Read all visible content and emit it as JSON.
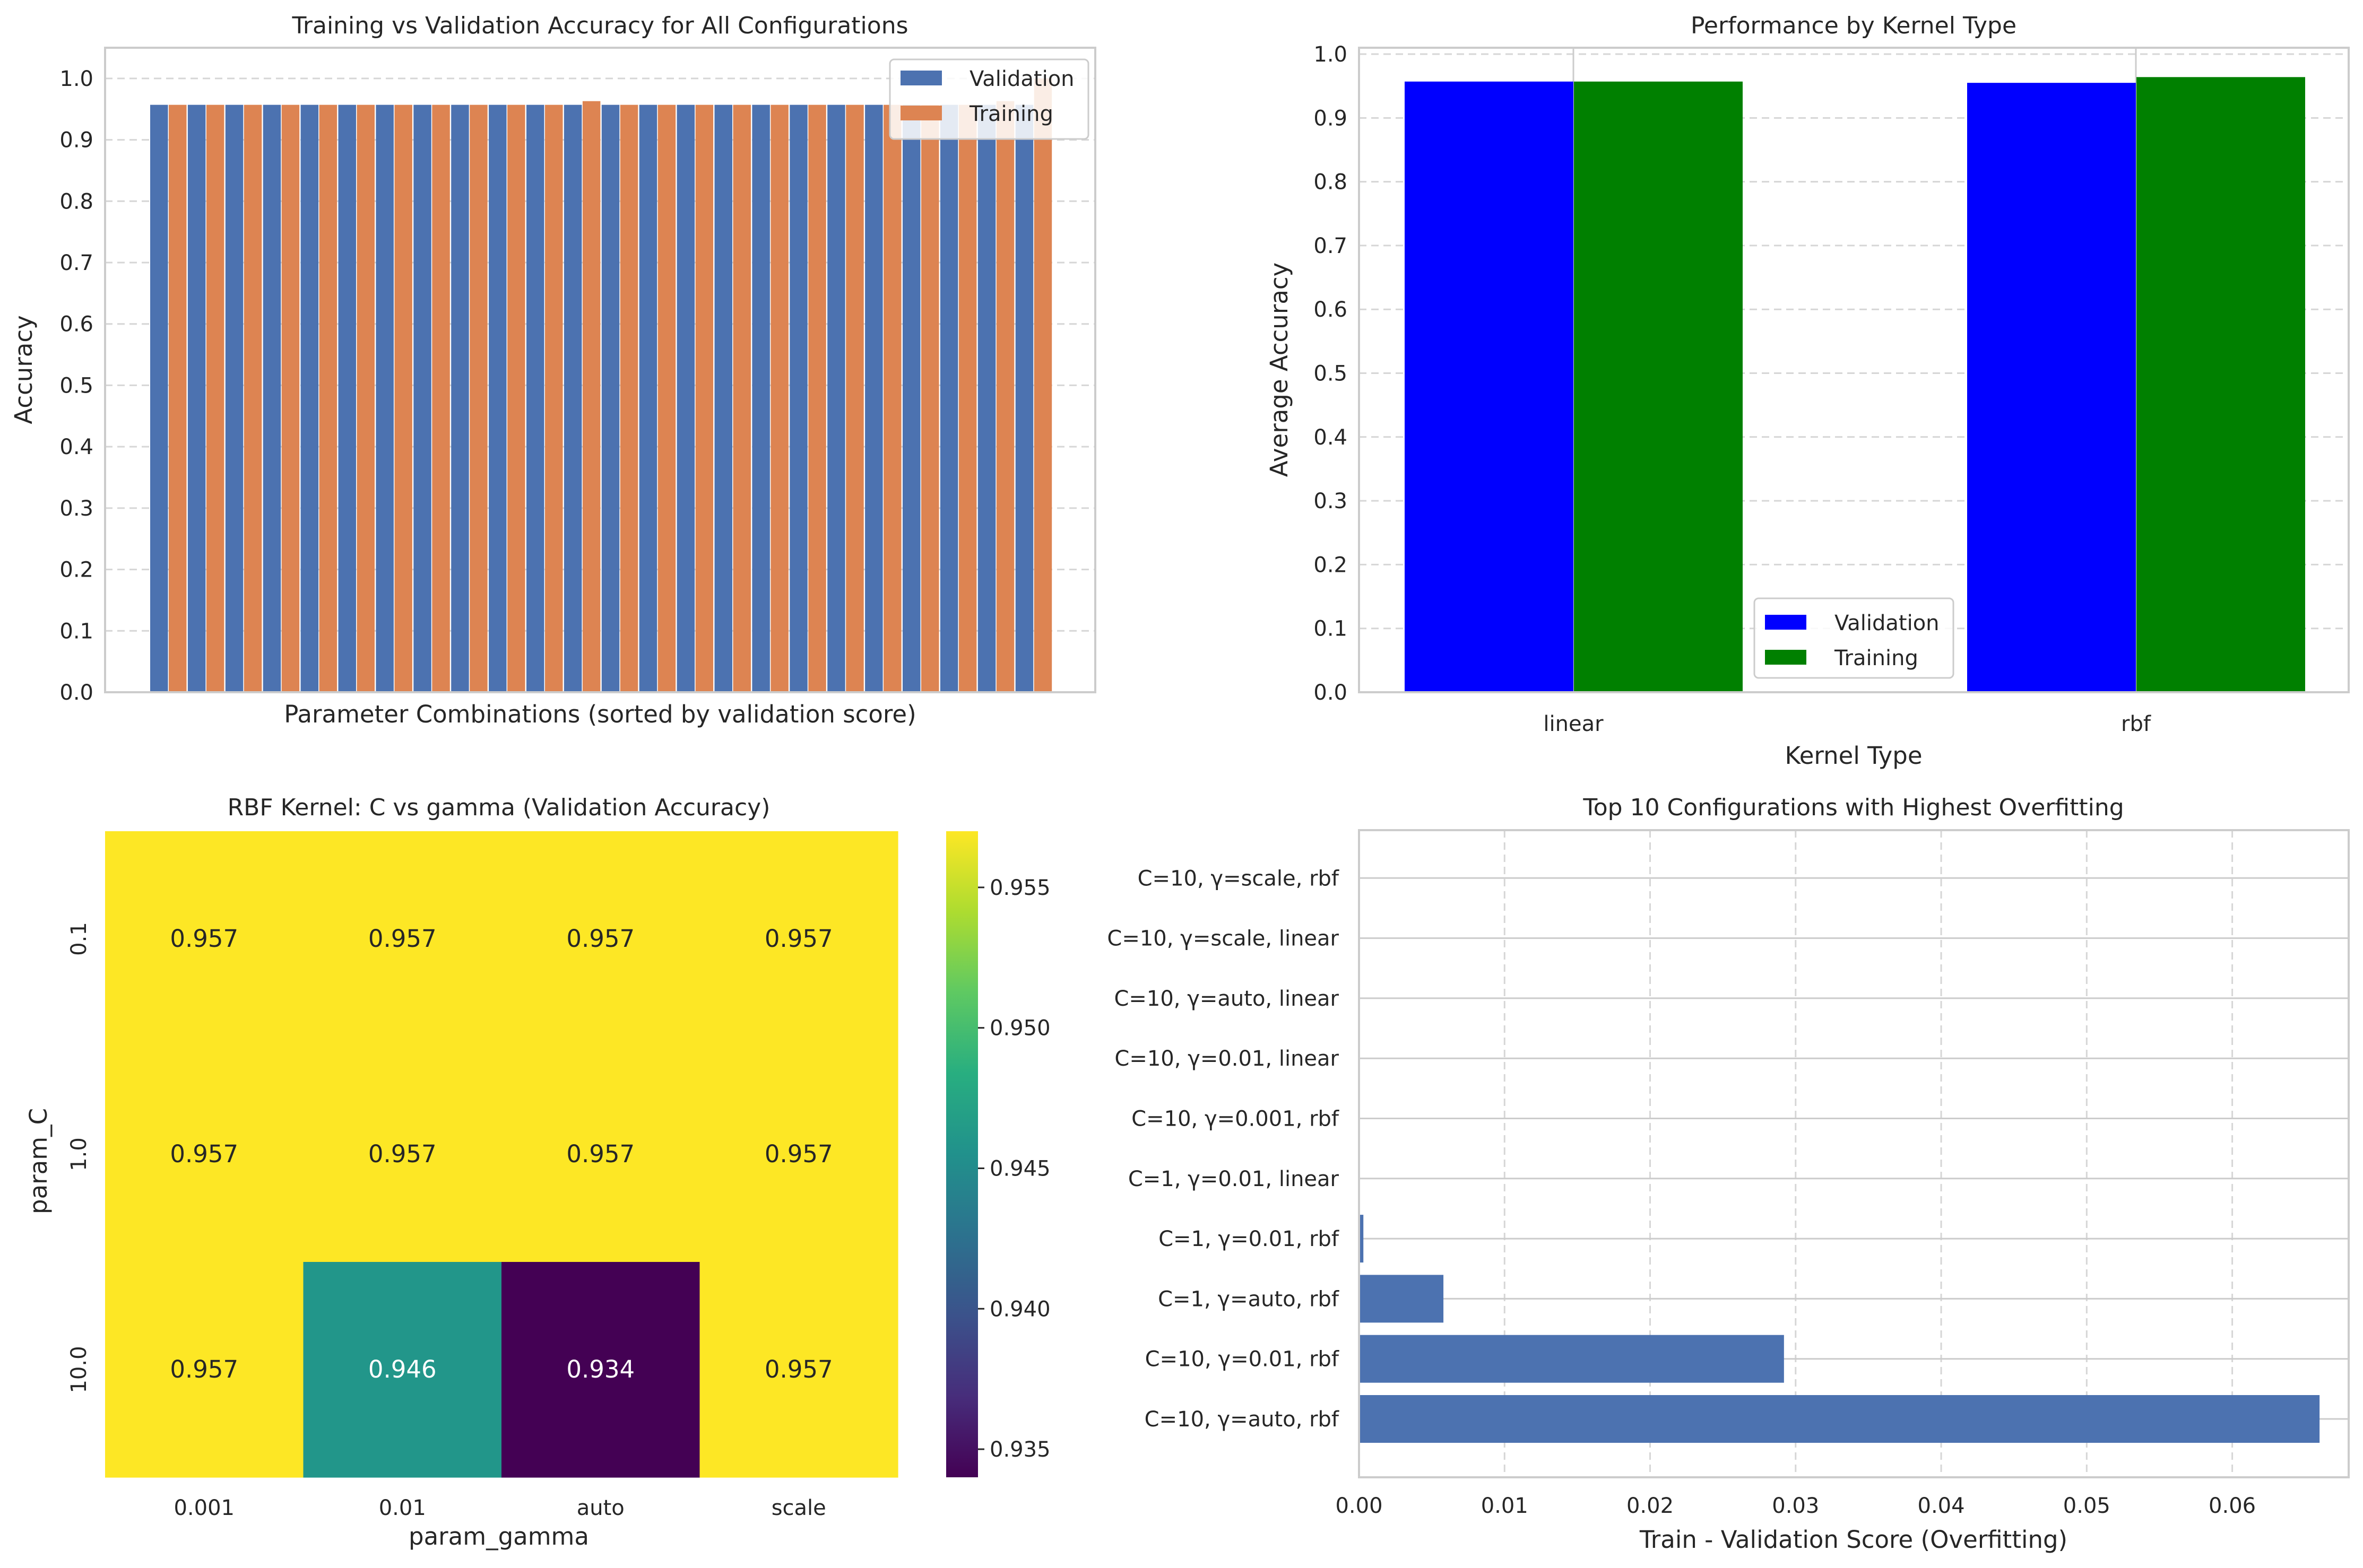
{
  "colors": {
    "seaborn_blue": "#4c72b0",
    "seaborn_orange": "#dd8452",
    "pure_blue": "#0000ff",
    "pure_green": "#008000"
  },
  "charts": [
    {
      "type": "bar",
      "title": "Training vs Validation Accuracy for All Configurations",
      "xlabel": "Parameter Combinations (sorted by validation score)",
      "ylabel": "Accuracy",
      "ylim": [
        0,
        1.05
      ],
      "yticks": [
        "0.0",
        "0.1",
        "0.2",
        "0.3",
        "0.4",
        "0.5",
        "0.6",
        "0.7",
        "0.8",
        "0.9",
        "1.0"
      ],
      "grid": "y-dashed",
      "legend": {
        "position": "top-right",
        "entries": [
          "Validation",
          "Training"
        ]
      },
      "series": [
        {
          "name": "Validation",
          "color": "#4c72b0",
          "values": [
            0.957,
            0.957,
            0.957,
            0.957,
            0.957,
            0.957,
            0.957,
            0.957,
            0.957,
            0.957,
            0.957,
            0.957,
            0.957,
            0.957,
            0.957,
            0.957,
            0.957,
            0.957,
            0.957,
            0.957,
            0.957,
            0.957,
            0.957,
            0.957
          ]
        },
        {
          "name": "Training",
          "color": "#dd8452",
          "values": [
            0.957,
            0.957,
            0.957,
            0.957,
            0.957,
            0.957,
            0.957,
            0.957,
            0.957,
            0.957,
            0.957,
            0.963,
            0.957,
            0.957,
            0.957,
            0.957,
            0.957,
            0.957,
            0.957,
            0.957,
            0.957,
            0.957,
            0.963,
            1.0
          ]
        }
      ]
    },
    {
      "type": "bar",
      "title": "Performance by Kernel Type",
      "xlabel": "Kernel Type",
      "ylabel": "Average Accuracy",
      "ylim": [
        0,
        1.01
      ],
      "yticks": [
        "0.0",
        "0.1",
        "0.2",
        "0.3",
        "0.4",
        "0.5",
        "0.6",
        "0.7",
        "0.8",
        "0.9",
        "1.0"
      ],
      "grid": "y-dashed",
      "categories": [
        "linear",
        "rbf"
      ],
      "legend": {
        "position": "lower-center",
        "entries": [
          "Validation",
          "Training"
        ]
      },
      "series": [
        {
          "name": "Validation",
          "color": "#0000ff",
          "values": [
            0.957,
            0.955
          ]
        },
        {
          "name": "Training",
          "color": "#008000",
          "values": [
            0.957,
            0.964
          ]
        }
      ]
    },
    {
      "type": "heatmap",
      "title": "RBF Kernel: C vs gamma (Validation Accuracy)",
      "xlabel": "param_gamma",
      "ylabel": "param_C",
      "x_categories": [
        "0.001",
        "0.01",
        "auto",
        "scale"
      ],
      "y_categories": [
        "0.1",
        "1.0",
        "10.0"
      ],
      "colormap": "viridis",
      "vmin": 0.934,
      "vmax": 0.957,
      "values": [
        [
          0.957,
          0.957,
          0.957,
          0.957
        ],
        [
          0.957,
          0.957,
          0.957,
          0.957
        ],
        [
          0.957,
          0.946,
          0.934,
          0.957
        ]
      ],
      "annotations": [
        [
          "0.957",
          "0.957",
          "0.957",
          "0.957"
        ],
        [
          "0.957",
          "0.957",
          "0.957",
          "0.957"
        ],
        [
          "0.957",
          "0.946",
          "0.934",
          "0.957"
        ]
      ],
      "colorbar_ticks": [
        0.935,
        0.94,
        0.945,
        0.95,
        0.955
      ],
      "colorbar_labels": [
        "0.935",
        "0.940",
        "0.945",
        "0.950",
        "0.955"
      ]
    },
    {
      "type": "bar",
      "orientation": "horizontal",
      "title": "Top 10 Configurations with Highest Overfitting",
      "xlabel": "Train - Validation Score (Overfitting)",
      "ylabel": "",
      "xlim": [
        0,
        0.068
      ],
      "xticks": [
        "0.00",
        "0.01",
        "0.02",
        "0.03",
        "0.04",
        "0.05",
        "0.06"
      ],
      "grid": "x-dashed",
      "color": "#4c72b0",
      "categories": [
        "C=10, γ=auto, rbf",
        "C=10, γ=0.01, rbf",
        "C=1, γ=auto, rbf",
        "C=1, γ=0.01, rbf",
        "C=1, γ=0.01, linear",
        "C=10, γ=0.001, rbf",
        "C=10, γ=0.01, linear",
        "C=10, γ=auto, linear",
        "C=10, γ=scale, linear",
        "C=10, γ=scale, rbf"
      ],
      "values": [
        0.066,
        0.0292,
        0.0058,
        0.0003,
        0.0,
        0.0,
        0.0,
        0.0,
        0.0,
        0.0
      ]
    }
  ]
}
